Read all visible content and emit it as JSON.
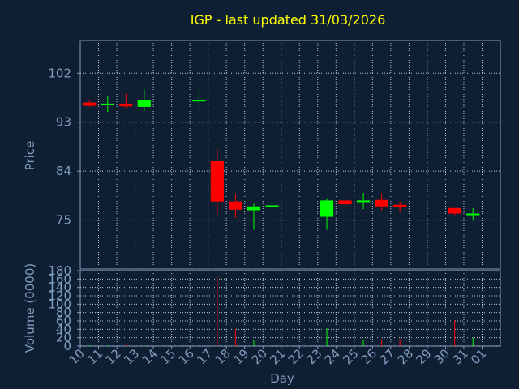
{
  "chart_data": {
    "type": "candlestick",
    "title": "IGP - last updated 31/03/2026",
    "xlabel": "Day",
    "price_panel": {
      "ylabel": "Price",
      "yticks": [
        75,
        84,
        93,
        102
      ],
      "ylim": [
        66,
        108
      ]
    },
    "volume_panel": {
      "ylabel": "Volume (0000)",
      "yticks": [
        0,
        20,
        40,
        60,
        80,
        100,
        120,
        140,
        160,
        180
      ],
      "ylim": [
        0,
        180
      ]
    },
    "x_ticks": [
      "10",
      "11",
      "12",
      "13",
      "14",
      "15",
      "16",
      "17",
      "18",
      "19",
      "20",
      "21",
      "22",
      "23",
      "24",
      "25",
      "26",
      "27",
      "28",
      "29",
      "30",
      "31",
      "01"
    ],
    "candles": [
      {
        "day": "10",
        "open": 96.6,
        "high": 97.0,
        "low": 95.8,
        "close": 96.0
      },
      {
        "day": "11",
        "open": 96.2,
        "high": 97.7,
        "low": 94.9,
        "close": 96.4
      },
      {
        "day": "12",
        "open": 96.4,
        "high": 98.3,
        "low": 95.6,
        "close": 95.9
      },
      {
        "day": "13",
        "open": 95.8,
        "high": 99.0,
        "low": 95.0,
        "close": 97.0
      },
      {
        "day": "16",
        "open": 96.9,
        "high": 99.2,
        "low": 95.0,
        "close": 97.1
      },
      {
        "day": "17",
        "open": 85.8,
        "high": 88.1,
        "low": 76.0,
        "close": 78.4
      },
      {
        "day": "18",
        "open": 78.4,
        "high": 79.8,
        "low": 75.4,
        "close": 76.9
      },
      {
        "day": "19",
        "open": 76.8,
        "high": 78.0,
        "low": 73.2,
        "close": 77.5
      },
      {
        "day": "20",
        "open": 77.5,
        "high": 78.9,
        "low": 76.2,
        "close": 77.7
      },
      {
        "day": "23",
        "open": 75.6,
        "high": 79.0,
        "low": 73.2,
        "close": 78.6
      },
      {
        "day": "24",
        "open": 78.6,
        "high": 79.8,
        "low": 77.2,
        "close": 77.9
      },
      {
        "day": "25",
        "open": 78.5,
        "high": 80.0,
        "low": 77.0,
        "close": 78.6
      },
      {
        "day": "26",
        "open": 78.7,
        "high": 79.9,
        "low": 76.8,
        "close": 77.5
      },
      {
        "day": "27",
        "open": 77.8,
        "high": 78.4,
        "low": 76.5,
        "close": 77.4
      },
      {
        "day": "30",
        "open": 77.2,
        "high": 77.2,
        "low": 75.9,
        "close": 76.2
      },
      {
        "day": "31",
        "open": 76.1,
        "high": 77.2,
        "low": 75.1,
        "close": 76.2
      }
    ],
    "volume": [
      {
        "day": "10",
        "value": 2,
        "color": "green"
      },
      {
        "day": "11",
        "value": 2,
        "color": "green"
      },
      {
        "day": "12",
        "value": 3,
        "color": "red"
      },
      {
        "day": "13",
        "value": 2,
        "color": "green"
      },
      {
        "day": "16",
        "value": 1,
        "color": "green"
      },
      {
        "day": "17",
        "value": 165,
        "color": "red"
      },
      {
        "day": "18",
        "value": 40,
        "color": "red"
      },
      {
        "day": "19",
        "value": 15,
        "color": "green"
      },
      {
        "day": "20",
        "value": 4,
        "color": "green"
      },
      {
        "day": "23",
        "value": 42,
        "color": "green"
      },
      {
        "day": "24",
        "value": 15,
        "color": "red"
      },
      {
        "day": "25",
        "value": 14,
        "color": "green"
      },
      {
        "day": "26",
        "value": 15,
        "color": "red"
      },
      {
        "day": "27",
        "value": 17,
        "color": "red"
      },
      {
        "day": "30",
        "value": 62,
        "color": "red"
      },
      {
        "day": "31",
        "value": 20,
        "color": "green"
      }
    ],
    "colors": {
      "background": "#0f1f33",
      "axis": "#7f9cbf",
      "grid": "#c0c8d0",
      "title": "#ffff00",
      "label": "#7f9cbf",
      "up": "#00ff00",
      "down": "#ff0000"
    },
    "grid": true
  }
}
